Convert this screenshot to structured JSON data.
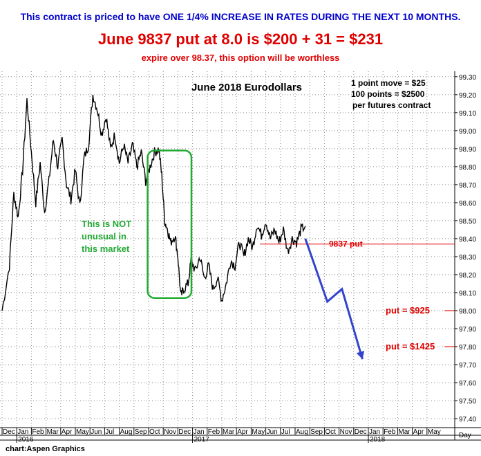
{
  "header": {
    "line1": "This contract is priced to have ONE 1/4% INCREASE IN RATES DURING THE NEXT 10 MONTHS.",
    "line2": "June 9837 put at 8.0 is $200 + 31 = $231",
    "line3": "expire over 98.37, this option will be worthless"
  },
  "credit": "chart:Aspen Graphics",
  "chart_data": {
    "type": "line",
    "title": "June 2018 Eurodollars",
    "ylim": [
      97.35,
      99.33
    ],
    "yticks": [
      99.3,
      99.2,
      99.1,
      99.0,
      98.9,
      98.8,
      98.7,
      98.6,
      98.5,
      98.4,
      98.3,
      98.2,
      98.1,
      98.0,
      97.9,
      97.8,
      97.7,
      97.6,
      97.5,
      97.4
    ],
    "ytick_labels": [
      "99.30",
      "99.20",
      "99.10",
      "99.00",
      "98.90",
      "98.80",
      "98.70",
      "98.60",
      "98.50",
      "98.40",
      "98.30",
      "98.20",
      "98.10",
      "98.00",
      "97.90",
      "97.80",
      "97.70",
      "97.60",
      "97.50",
      "97.40"
    ],
    "months": [
      {
        "label": "Dec",
        "year": ""
      },
      {
        "label": "Jan",
        "year": "2016"
      },
      {
        "label": "Feb",
        "year": ""
      },
      {
        "label": "Mar",
        "year": ""
      },
      {
        "label": "Apr",
        "year": ""
      },
      {
        "label": "May",
        "year": ""
      },
      {
        "label": "Jun",
        "year": ""
      },
      {
        "label": "Jul",
        "year": ""
      },
      {
        "label": "Aug",
        "year": ""
      },
      {
        "label": "Sep",
        "year": ""
      },
      {
        "label": "Oct",
        "year": ""
      },
      {
        "label": "Nov",
        "year": ""
      },
      {
        "label": "Dec",
        "year": ""
      },
      {
        "label": "Jan",
        "year": "2017"
      },
      {
        "label": "Feb",
        "year": ""
      },
      {
        "label": "Mar",
        "year": ""
      },
      {
        "label": "Apr",
        "year": ""
      },
      {
        "label": "May",
        "year": ""
      },
      {
        "label": "Jun",
        "year": ""
      },
      {
        "label": "Jul",
        "year": ""
      },
      {
        "label": "Aug",
        "year": ""
      },
      {
        "label": "Sep",
        "year": ""
      },
      {
        "label": "Oct",
        "year": ""
      },
      {
        "label": "Nov",
        "year": ""
      },
      {
        "label": "Dec",
        "year": ""
      },
      {
        "label": "Jan",
        "year": "2018"
      },
      {
        "label": "Feb",
        "year": ""
      },
      {
        "label": "Mar",
        "year": ""
      },
      {
        "label": "Apr",
        "year": ""
      },
      {
        "label": "May",
        "year": ""
      }
    ],
    "x_axis_unit": "Day",
    "series": [
      {
        "values": [
          {
            "month": 0.0,
            "price": 98.0
          },
          {
            "month": 0.5,
            "price": 98.25
          },
          {
            "month": 0.8,
            "price": 98.65
          },
          {
            "month": 1.1,
            "price": 98.52
          },
          {
            "month": 1.4,
            "price": 98.78
          },
          {
            "month": 1.7,
            "price": 99.17
          },
          {
            "month": 2.0,
            "price": 98.88
          },
          {
            "month": 2.3,
            "price": 98.6
          },
          {
            "month": 2.6,
            "price": 98.82
          },
          {
            "month": 2.9,
            "price": 98.55
          },
          {
            "month": 3.2,
            "price": 98.72
          },
          {
            "month": 3.5,
            "price": 98.95
          },
          {
            "month": 3.8,
            "price": 98.8
          },
          {
            "month": 4.1,
            "price": 98.95
          },
          {
            "month": 4.4,
            "price": 98.7
          },
          {
            "month": 4.7,
            "price": 98.62
          },
          {
            "month": 5.0,
            "price": 98.78
          },
          {
            "month": 5.3,
            "price": 98.58
          },
          {
            "month": 5.6,
            "price": 98.85
          },
          {
            "month": 5.9,
            "price": 98.92
          },
          {
            "month": 6.2,
            "price": 99.2
          },
          {
            "month": 6.5,
            "price": 99.12
          },
          {
            "month": 6.8,
            "price": 98.98
          },
          {
            "month": 7.1,
            "price": 99.08
          },
          {
            "month": 7.4,
            "price": 98.9
          },
          {
            "month": 7.7,
            "price": 98.98
          },
          {
            "month": 8.0,
            "price": 98.82
          },
          {
            "month": 8.3,
            "price": 98.92
          },
          {
            "month": 8.6,
            "price": 98.82
          },
          {
            "month": 8.9,
            "price": 98.92
          },
          {
            "month": 9.2,
            "price": 98.8
          },
          {
            "month": 9.5,
            "price": 98.88
          },
          {
            "month": 9.8,
            "price": 98.72
          },
          {
            "month": 10.1,
            "price": 98.8
          },
          {
            "month": 10.4,
            "price": 98.88
          },
          {
            "month": 10.7,
            "price": 98.9
          },
          {
            "month": 10.9,
            "price": 98.75
          },
          {
            "month": 11.1,
            "price": 98.5
          },
          {
            "month": 11.3,
            "price": 98.45
          },
          {
            "month": 11.5,
            "price": 98.38
          },
          {
            "month": 11.8,
            "price": 98.42
          },
          {
            "month": 12.0,
            "price": 98.3
          },
          {
            "month": 12.2,
            "price": 98.08
          },
          {
            "month": 12.4,
            "price": 98.12
          },
          {
            "month": 12.7,
            "price": 98.15
          },
          {
            "month": 12.9,
            "price": 98.28
          },
          {
            "month": 13.2,
            "price": 98.22
          },
          {
            "month": 13.5,
            "price": 98.3
          },
          {
            "month": 13.8,
            "price": 98.18
          },
          {
            "month": 14.1,
            "price": 98.25
          },
          {
            "month": 14.4,
            "price": 98.12
          },
          {
            "month": 14.7,
            "price": 98.18
          },
          {
            "month": 15.0,
            "price": 98.06
          },
          {
            "month": 15.3,
            "price": 98.15
          },
          {
            "month": 15.6,
            "price": 98.28
          },
          {
            "month": 15.9,
            "price": 98.25
          },
          {
            "month": 16.2,
            "price": 98.38
          },
          {
            "month": 16.5,
            "price": 98.3
          },
          {
            "month": 16.8,
            "price": 98.4
          },
          {
            "month": 17.1,
            "price": 98.35
          },
          {
            "month": 17.4,
            "price": 98.48
          },
          {
            "month": 17.7,
            "price": 98.42
          },
          {
            "month": 18.0,
            "price": 98.5
          },
          {
            "month": 18.3,
            "price": 98.4
          },
          {
            "month": 18.6,
            "price": 98.45
          },
          {
            "month": 18.9,
            "price": 98.38
          },
          {
            "month": 19.2,
            "price": 98.45
          },
          {
            "month": 19.5,
            "price": 98.33
          },
          {
            "month": 19.8,
            "price": 98.4
          },
          {
            "month": 20.1,
            "price": 98.38
          },
          {
            "month": 20.4,
            "price": 98.45
          },
          {
            "month": 20.7,
            "price": 98.47
          }
        ]
      }
    ],
    "projection": [
      {
        "month": 20.7,
        "price": 98.4
      },
      {
        "month": 22.2,
        "price": 98.05
      },
      {
        "month": 23.2,
        "price": 98.12
      },
      {
        "month": 24.6,
        "price": 97.73
      }
    ],
    "annotations": {
      "title": "June 2018 Eurodollars",
      "contract_note": [
        "1 point move = $25",
        "100 points = $2500",
        "per futures contract"
      ],
      "market_note": [
        "This is NOT",
        "unusual in",
        "this market"
      ],
      "strike_label": "9837 put",
      "strike_price": 98.37,
      "put1_label": "put = $925",
      "put1_price": 98.0,
      "put2_label": "put = $1425",
      "put2_price": 97.8
    },
    "highlight_box": {
      "month_start": 10.5,
      "month_end": 12.5,
      "price_low": 98.07,
      "price_high": 98.89,
      "color": "#22aa33"
    },
    "colors": {
      "price_line": "#000000",
      "projection": "#3344cc",
      "strike": "#e00000",
      "annotation_red": "#e00000",
      "note_green": "#22aa33",
      "header_blue": "#0000cc"
    }
  }
}
